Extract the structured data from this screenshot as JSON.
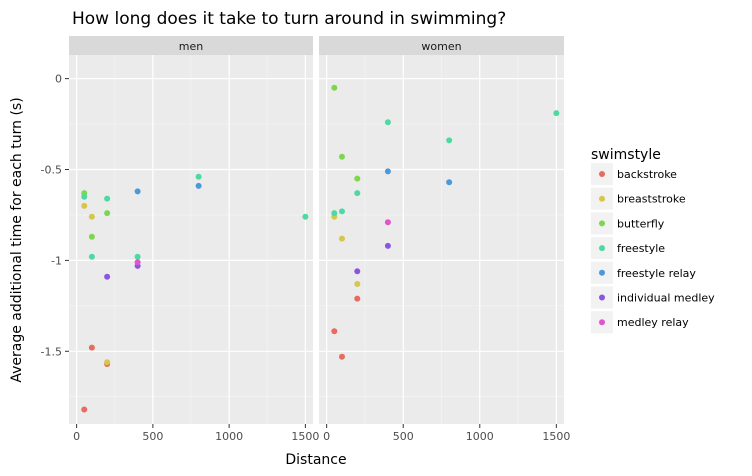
{
  "chart_data": {
    "type": "scatter",
    "title": "How long does it take to turn around in swimming?",
    "xlabel": "Distance",
    "ylabel": "Average additional time for each turn (s)",
    "xlim": [
      -50,
      1550
    ],
    "ylim": [
      -1.9,
      0.13
    ],
    "x_ticks": [
      0,
      500,
      1000,
      1500
    ],
    "x_tick_labels": [
      "0",
      "500",
      "1000",
      "1500"
    ],
    "y_ticks": [
      0,
      -0.5,
      -1,
      -1.5
    ],
    "y_tick_labels": [
      "0",
      "-0.5",
      "-1",
      "-1.5"
    ],
    "grid": true,
    "legend_position": "right",
    "legend_title": "swimstyle",
    "facets": [
      "men",
      "women"
    ],
    "series": [
      {
        "name": "backstroke",
        "color": "#E76B5E",
        "points": {
          "men": [
            [
              50,
              -1.82
            ],
            [
              100,
              -1.48
            ],
            [
              200,
              -1.57
            ]
          ],
          "women": [
            [
              50,
              -1.39
            ],
            [
              100,
              -1.53
            ],
            [
              200,
              -1.21
            ]
          ]
        }
      },
      {
        "name": "breaststroke",
        "color": "#D4C74B",
        "points": {
          "men": [
            [
              50,
              -0.7
            ],
            [
              100,
              -0.76
            ],
            [
              200,
              -1.56
            ]
          ],
          "women": [
            [
              50,
              -0.76
            ],
            [
              100,
              -0.88
            ],
            [
              200,
              -1.13
            ]
          ]
        }
      },
      {
        "name": "butterfly",
        "color": "#7ED64F",
        "points": {
          "men": [
            [
              50,
              -0.63
            ],
            [
              100,
              -0.87
            ],
            [
              200,
              -0.74
            ]
          ],
          "women": [
            [
              50,
              -0.05
            ],
            [
              100,
              -0.43
            ],
            [
              200,
              -0.55
            ]
          ]
        }
      },
      {
        "name": "freestyle",
        "color": "#4ED9A3",
        "points": {
          "men": [
            [
              50,
              -0.65
            ],
            [
              100,
              -0.98
            ],
            [
              200,
              -0.66
            ],
            [
              400,
              -0.98
            ],
            [
              800,
              -0.54
            ],
            [
              1500,
              -0.76
            ]
          ],
          "women": [
            [
              50,
              -0.74
            ],
            [
              100,
              -0.73
            ],
            [
              200,
              -0.63
            ],
            [
              400,
              -0.24
            ],
            [
              800,
              -0.34
            ],
            [
              1500,
              -0.19
            ]
          ]
        }
      },
      {
        "name": "freestyle relay",
        "color": "#4A9ADB",
        "points": {
          "men": [
            [
              400,
              -0.62
            ],
            [
              800,
              -0.59
            ]
          ],
          "women": [
            [
              400,
              -0.51
            ],
            [
              800,
              -0.57
            ]
          ]
        }
      },
      {
        "name": "individual medley",
        "color": "#8A55E3",
        "points": {
          "men": [
            [
              200,
              -1.09
            ],
            [
              400,
              -1.03
            ]
          ],
          "women": [
            [
              200,
              -1.06
            ],
            [
              400,
              -0.92
            ]
          ]
        }
      },
      {
        "name": "medley relay",
        "color": "#E253CF",
        "points": {
          "men": [
            [
              400,
              -1.01
            ]
          ],
          "women": [
            [
              400,
              -0.79
            ]
          ]
        }
      }
    ]
  }
}
